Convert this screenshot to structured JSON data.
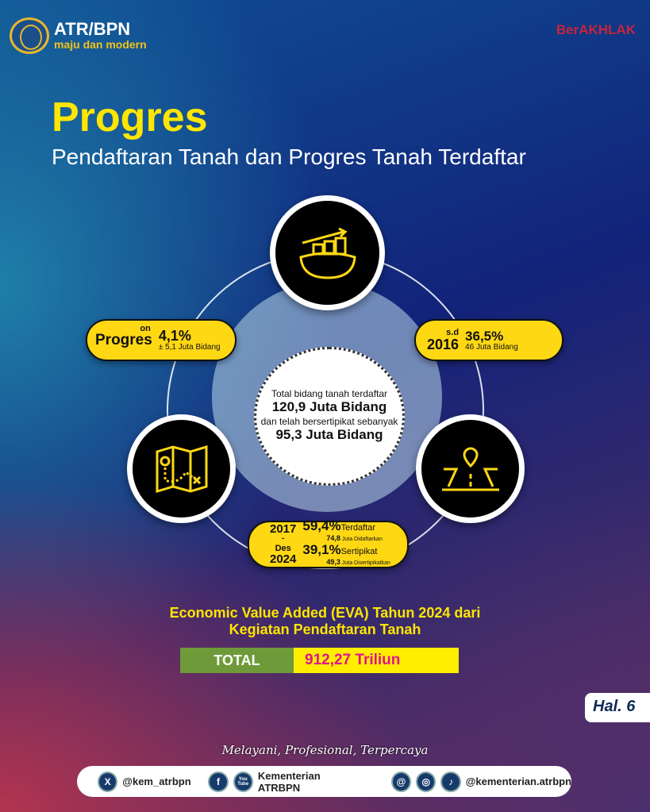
{
  "header": {
    "logo_title": "ATR/BPN",
    "logo_tagline": "maju dan modern",
    "berakhlak": "BerAKHLAK"
  },
  "title": "Progres",
  "subtitle": "Pendaftaran Tanah dan Progres Tanah Terdaftar",
  "center": {
    "line1": "Total bidang tanah terdaftar",
    "value1": "120,9 Juta Bidang",
    "line2": "dan telah bersertipikat sebanyak",
    "value2": "95,3 Juta Bidang"
  },
  "left_pill": {
    "label": "Progres",
    "sup": "on",
    "percent": "4,1%",
    "detail": "± 5,1 Juta Bidang"
  },
  "right_pill": {
    "sup": "s.d",
    "year": "2016",
    "percent": "36,5%",
    "detail": "46 Juta Bidang"
  },
  "bottom_pill": {
    "year_start": "2017",
    "dash": "-",
    "month": "Des",
    "year_end": "2024",
    "row1": {
      "percent": "59,4%",
      "label": "Terdaftar",
      "value": "74,8",
      "unit": "Juta Didaftarkan"
    },
    "row2": {
      "percent": "39,1%",
      "label": "Sertipikat",
      "value": "49,3",
      "unit": "Juta Disertipikatkan"
    }
  },
  "icons": {
    "top": "land-growth-icon",
    "left": "map-route-icon",
    "right": "road-location-icon"
  },
  "eva": {
    "line1": "Economic Value Added (EVA) Tahun 2024 dari",
    "line2": "Kegiatan Pendaftaran Tanah",
    "total_label": "TOTAL",
    "total_value": "912,27 Triliun"
  },
  "page": "Hal. 6",
  "tagline": "Melayani, Profesional, Terpercaya",
  "footer": {
    "x_handle": "@kem_atrbpn",
    "fb_yt": "Kementerian ATRBPN",
    "ig_handle": "@kementerian.atrbpn",
    "x_icon": "X",
    "fb_icon": "f",
    "yt_icon": "You Tube",
    "th_icon": "@",
    "ig_icon": "◎",
    "tt_icon": "♪"
  },
  "colors": {
    "accent_yellow": "#ffd814",
    "title_yellow": "#ffe600",
    "total_green": "#6f9a3a",
    "total_pink": "#e0158c"
  }
}
